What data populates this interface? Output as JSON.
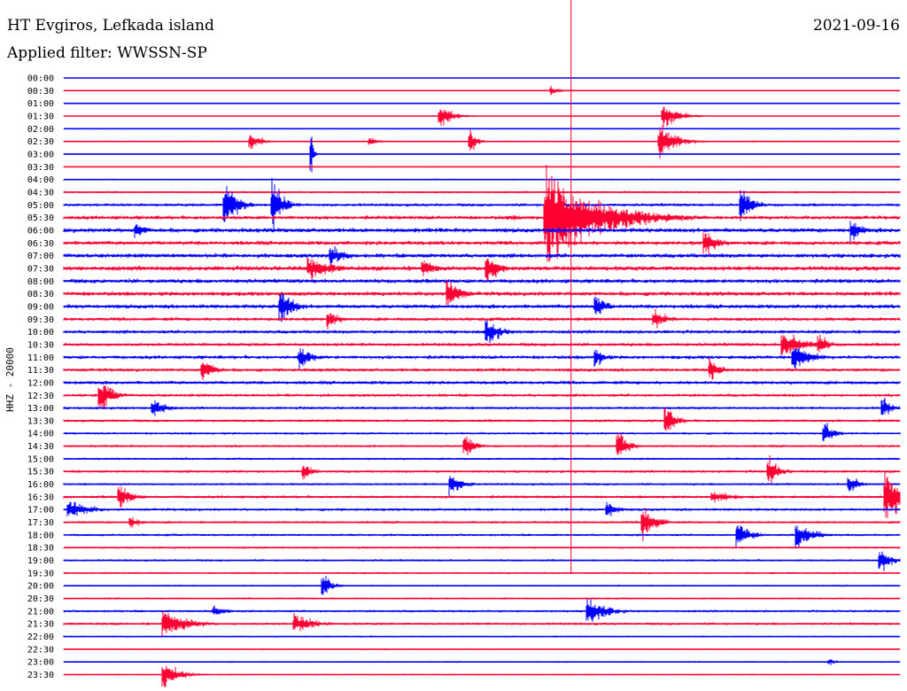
{
  "header": {
    "station": "HT Evgiros, Lefkada island",
    "filter": "Applied filter: WWSSN-SP",
    "date": "2021-09-16"
  },
  "chart_data": {
    "type": "line",
    "title": "HT Evgiros, Lefkada island",
    "subtitle": "Applied filter: WWSSN-SP",
    "ylabel": "HHZ - 20000",
    "rows": [
      "00:00",
      "00:30",
      "01:00",
      "01:30",
      "02:00",
      "02:30",
      "03:00",
      "03:30",
      "04:00",
      "04:30",
      "05:00",
      "05:30",
      "06:00",
      "06:30",
      "07:00",
      "07:30",
      "08:00",
      "08:30",
      "09:00",
      "09:30",
      "10:00",
      "10:30",
      "11:00",
      "11:30",
      "12:00",
      "12:30",
      "13:00",
      "13:30",
      "14:00",
      "14:30",
      "15:00",
      "15:30",
      "16:00",
      "16:30",
      "17:00",
      "17:30",
      "18:00",
      "18:30",
      "19:00",
      "19:30",
      "20:00",
      "20:30",
      "21:00",
      "21:30",
      "22:00",
      "22:30",
      "23:00",
      "23:30"
    ],
    "row_colors": [
      "#0000ff",
      "#ff0033"
    ],
    "row_noise": [
      0.3,
      0.4,
      0.5,
      0.5,
      0.6,
      0.9,
      0.6,
      0.7,
      0.9,
      1.2,
      1.8,
      2.2,
      2.5,
      2.3,
      2.5,
      2.6,
      2.4,
      2.4,
      2.3,
      2.0,
      2.0,
      1.9,
      2.1,
      1.9,
      2.0,
      1.8,
      1.6,
      1.5,
      1.4,
      1.4,
      1.3,
      1.5,
      1.4,
      1.6,
      1.6,
      1.4,
      1.4,
      1.2,
      1.3,
      1.1,
      1.0,
      1.1,
      1.4,
      1.5,
      1.0,
      0.9,
      0.9,
      0.9
    ],
    "x_minutes": [
      0,
      30
    ],
    "events": [
      {
        "row": "00:30",
        "minute": 17.5,
        "amp": 6,
        "dur": 0.8
      },
      {
        "row": "01:30",
        "minute": 13.5,
        "amp": 12,
        "dur": 1.4
      },
      {
        "row": "01:30",
        "minute": 21.5,
        "amp": 15,
        "dur": 1.6
      },
      {
        "row": "02:30",
        "minute": 6.7,
        "amp": 10,
        "dur": 1.2
      },
      {
        "row": "02:30",
        "minute": 11.0,
        "amp": 5,
        "dur": 1.0
      },
      {
        "row": "02:30",
        "minute": 14.6,
        "amp": 14,
        "dur": 0.6
      },
      {
        "row": "02:30",
        "minute": 21.4,
        "amp": 22,
        "dur": 1.6
      },
      {
        "row": "03:00",
        "minute": 8.9,
        "amp": 24,
        "dur": 0.2
      },
      {
        "row": "05:00",
        "minute": 5.8,
        "amp": 30,
        "dur": 1.2
      },
      {
        "row": "05:00",
        "minute": 7.5,
        "amp": 32,
        "dur": 1.0
      },
      {
        "row": "05:00",
        "minute": 24.3,
        "amp": 26,
        "dur": 1.0
      },
      {
        "row": "05:30",
        "minute": 16.0,
        "amp": 3,
        "dur": 6.0
      },
      {
        "row": "05:30",
        "minute": 17.3,
        "amp": 60,
        "dur": 5.0
      },
      {
        "row": "06:00",
        "minute": 2.6,
        "amp": 10,
        "dur": 1.2
      },
      {
        "row": "06:00",
        "minute": 28.3,
        "amp": 14,
        "dur": 1.0
      },
      {
        "row": "06:30",
        "minute": 23.0,
        "amp": 18,
        "dur": 1.2
      },
      {
        "row": "07:00",
        "minute": 9.6,
        "amp": 12,
        "dur": 1.6
      },
      {
        "row": "07:30",
        "minute": 8.8,
        "amp": 14,
        "dur": 2.5
      },
      {
        "row": "07:30",
        "minute": 12.9,
        "amp": 10,
        "dur": 1.6
      },
      {
        "row": "07:30",
        "minute": 15.2,
        "amp": 20,
        "dur": 1.2
      },
      {
        "row": "08:30",
        "minute": 13.8,
        "amp": 20,
        "dur": 1.2
      },
      {
        "row": "09:00",
        "minute": 7.8,
        "amp": 22,
        "dur": 1.2
      },
      {
        "row": "09:00",
        "minute": 19.1,
        "amp": 16,
        "dur": 1.0
      },
      {
        "row": "09:30",
        "minute": 9.5,
        "amp": 12,
        "dur": 1.0
      },
      {
        "row": "09:30",
        "minute": 21.2,
        "amp": 12,
        "dur": 1.2
      },
      {
        "row": "10:00",
        "minute": 15.2,
        "amp": 18,
        "dur": 1.2
      },
      {
        "row": "10:30",
        "minute": 25.8,
        "amp": 18,
        "dur": 2.0
      },
      {
        "row": "10:30",
        "minute": 27.1,
        "amp": 14,
        "dur": 0.9
      },
      {
        "row": "11:00",
        "minute": 8.5,
        "amp": 14,
        "dur": 1.2
      },
      {
        "row": "11:00",
        "minute": 19.1,
        "amp": 12,
        "dur": 1.0
      },
      {
        "row": "11:00",
        "minute": 26.2,
        "amp": 18,
        "dur": 1.6
      },
      {
        "row": "11:30",
        "minute": 5.0,
        "amp": 14,
        "dur": 1.2
      },
      {
        "row": "11:30",
        "minute": 23.2,
        "amp": 14,
        "dur": 1.0
      },
      {
        "row": "12:30",
        "minute": 1.3,
        "amp": 20,
        "dur": 1.2
      },
      {
        "row": "13:00",
        "minute": 3.2,
        "amp": 14,
        "dur": 1.2
      },
      {
        "row": "13:00",
        "minute": 29.4,
        "amp": 14,
        "dur": 0.8
      },
      {
        "row": "13:30",
        "minute": 21.6,
        "amp": 18,
        "dur": 1.0
      },
      {
        "row": "14:00",
        "minute": 27.3,
        "amp": 14,
        "dur": 1.0
      },
      {
        "row": "14:30",
        "minute": 14.4,
        "amp": 14,
        "dur": 1.0
      },
      {
        "row": "14:30",
        "minute": 19.9,
        "amp": 18,
        "dur": 1.0
      },
      {
        "row": "15:30",
        "minute": 8.6,
        "amp": 10,
        "dur": 1.0
      },
      {
        "row": "15:30",
        "minute": 25.3,
        "amp": 18,
        "dur": 1.0
      },
      {
        "row": "16:00",
        "minute": 13.9,
        "amp": 12,
        "dur": 1.4
      },
      {
        "row": "16:00",
        "minute": 28.2,
        "amp": 12,
        "dur": 1.0
      },
      {
        "row": "16:30",
        "minute": 2.0,
        "amp": 16,
        "dur": 1.2
      },
      {
        "row": "16:30",
        "minute": 23.3,
        "amp": 8,
        "dur": 2.0
      },
      {
        "row": "16:30",
        "minute": 29.5,
        "amp": 30,
        "dur": 2.0
      },
      {
        "row": "17:00",
        "minute": 0.2,
        "amp": 12,
        "dur": 2.0
      },
      {
        "row": "17:00",
        "minute": 19.5,
        "amp": 12,
        "dur": 1.0
      },
      {
        "row": "17:30",
        "minute": 2.4,
        "amp": 8,
        "dur": 1.0
      },
      {
        "row": "17:30",
        "minute": 20.8,
        "amp": 22,
        "dur": 1.2
      },
      {
        "row": "18:00",
        "minute": 24.2,
        "amp": 16,
        "dur": 1.2
      },
      {
        "row": "18:00",
        "minute": 26.3,
        "amp": 16,
        "dur": 1.6
      },
      {
        "row": "19:00",
        "minute": 29.3,
        "amp": 16,
        "dur": 1.0
      },
      {
        "row": "20:00",
        "minute": 9.3,
        "amp": 16,
        "dur": 0.8
      },
      {
        "row": "21:00",
        "minute": 5.4,
        "amp": 8,
        "dur": 1.2
      },
      {
        "row": "21:00",
        "minute": 18.8,
        "amp": 18,
        "dur": 1.8
      },
      {
        "row": "21:30",
        "minute": 3.6,
        "amp": 16,
        "dur": 2.5
      },
      {
        "row": "21:30",
        "minute": 8.3,
        "amp": 12,
        "dur": 2.0
      },
      {
        "row": "23:00",
        "minute": 27.5,
        "amp": 4,
        "dur": 1.0
      },
      {
        "row": "23:30",
        "minute": 3.6,
        "amp": 16,
        "dur": 1.6
      }
    ],
    "marker_minute": 18.2,
    "grid": false,
    "legend": "none"
  }
}
